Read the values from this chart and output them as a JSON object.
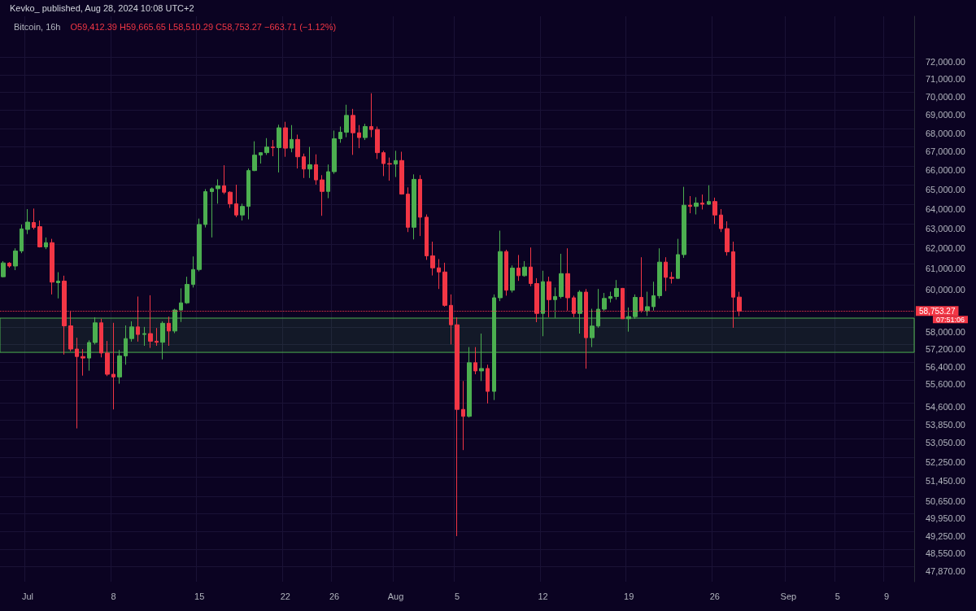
{
  "chart_data": {
    "type": "candlestick",
    "title": "Bitcoin, 16h",
    "subtitle": "O59,412.39 H59,665.65 L58,510.29 C58,753.27 −663.71 (−1.12%)",
    "annotations": [
      "Kevko_ published, Aug 28, 2024 10:08 UTC+2",
      "07:51:06"
    ],
    "categories": [
      null,
      null,
      null,
      null,
      "Jul",
      null,
      null,
      null,
      null,
      null,
      null,
      null,
      null,
      null,
      null,
      null,
      null,
      null,
      "8",
      null,
      null,
      null,
      null,
      null,
      null,
      null,
      null,
      null,
      null,
      null,
      null,
      null,
      "15",
      null,
      null,
      null,
      null,
      null,
      null,
      null,
      null,
      null,
      null,
      null,
      null,
      null,
      "22",
      null,
      null,
      null,
      null,
      null,
      null,
      null,
      "26",
      null,
      null,
      null,
      null,
      null,
      null,
      null,
      null,
      null,
      "Aug",
      null,
      null,
      null,
      null,
      null,
      null,
      null,
      null,
      null,
      "5",
      null,
      null,
      null,
      null,
      null,
      null,
      null,
      null,
      null,
      null,
      null,
      null,
      null,
      "12",
      null,
      null,
      null,
      null,
      null,
      null,
      null,
      null,
      null,
      null,
      null,
      null,
      null,
      "19",
      null,
      null,
      null,
      null,
      null,
      null,
      null,
      null,
      null,
      null,
      null,
      null,
      null,
      "26",
      null,
      null,
      null,
      null,
      null,
      null,
      null,
      null,
      null,
      null,
      null,
      "Sep",
      null,
      null,
      null,
      null,
      null,
      null,
      null,
      "5",
      null,
      null,
      null,
      null,
      null,
      null,
      null,
      "9",
      null,
      null,
      null,
      null
    ],
    "ohlc": [
      [
        60390,
        61150,
        60360,
        61060
      ],
      [
        61050,
        61100,
        60830,
        60910
      ],
      [
        60910,
        61780,
        60710,
        61650
      ],
      [
        61650,
        62970,
        61540,
        62750
      ],
      [
        62720,
        63750,
        62490,
        63090
      ],
      [
        63070,
        63780,
        62720,
        62820
      ],
      [
        62860,
        63170,
        61820,
        61850
      ],
      [
        61850,
        62320,
        61740,
        62060
      ],
      [
        62060,
        62250,
        59540,
        60130
      ],
      [
        60100,
        60610,
        59350,
        60180
      ],
      [
        60180,
        60440,
        56740,
        58060
      ],
      [
        58060,
        58770,
        56890,
        56990
      ],
      [
        56990,
        57510,
        53480,
        56650
      ],
      [
        56650,
        56990,
        55790,
        56580
      ],
      [
        56580,
        57390,
        56010,
        57290
      ],
      [
        57290,
        58460,
        57200,
        58200
      ],
      [
        58200,
        58390,
        56610,
        56810
      ],
      [
        56810,
        57360,
        55770,
        55850
      ],
      [
        55850,
        58200,
        54300,
        55730
      ],
      [
        55730,
        56950,
        55430,
        56680
      ],
      [
        56680,
        58080,
        56280,
        57470
      ],
      [
        57470,
        58270,
        57330,
        58010
      ],
      [
        58010,
        59440,
        57330,
        57660
      ],
      [
        57660,
        58010,
        57140,
        57700
      ],
      [
        57700,
        59500,
        57040,
        57350
      ],
      [
        57350,
        57960,
        57140,
        57300
      ],
      [
        57300,
        58270,
        56520,
        58180
      ],
      [
        58180,
        58490,
        57140,
        57820
      ],
      [
        57820,
        58860,
        57720,
        58800
      ],
      [
        58800,
        59830,
        58240,
        59140
      ],
      [
        59140,
        60390,
        59090,
        60020
      ],
      [
        60020,
        61380,
        59870,
        60740
      ],
      [
        60740,
        63270,
        60650,
        62970
      ],
      [
        62970,
        64780,
        62820,
        64650
      ],
      [
        64650,
        64870,
        62320,
        64800
      ],
      [
        64800,
        65290,
        64030,
        64950
      ],
      [
        64950,
        66030,
        64520,
        64620
      ],
      [
        64620,
        64670,
        63810,
        64020
      ],
      [
        64020,
        65010,
        63340,
        63450
      ],
      [
        63450,
        64030,
        63170,
        63890
      ],
      [
        63890,
        65860,
        63230,
        65750
      ],
      [
        65750,
        67310,
        65720,
        66570
      ],
      [
        66570,
        66720,
        66120,
        66700
      ],
      [
        66700,
        67480,
        66580,
        67000
      ],
      [
        67000,
        67380,
        66510,
        66970
      ],
      [
        66970,
        68210,
        65650,
        68040
      ],
      [
        68040,
        68370,
        66480,
        66940
      ],
      [
        66940,
        68190,
        66720,
        67410
      ],
      [
        67410,
        67670,
        65860,
        66480
      ],
      [
        66480,
        66650,
        65360,
        65830
      ],
      [
        65830,
        67010,
        65360,
        66060
      ],
      [
        66060,
        66610,
        65010,
        65260
      ],
      [
        65260,
        65510,
        63410,
        64660
      ],
      [
        64660,
        66070,
        64310,
        65690
      ],
      [
        65690,
        67890,
        65580,
        67450
      ],
      [
        67450,
        68110,
        67230,
        67800
      ],
      [
        67800,
        69310,
        67530,
        68720
      ],
      [
        68720,
        69080,
        66580,
        67770
      ],
      [
        67770,
        68190,
        66940,
        67510
      ],
      [
        67510,
        68260,
        67380,
        68110
      ],
      [
        68110,
        69950,
        67530,
        67950
      ],
      [
        67950,
        68110,
        66360,
        66700
      ],
      [
        66700,
        66800,
        65460,
        66120
      ],
      [
        66120,
        66440,
        65220,
        66090
      ],
      [
        66090,
        66800,
        65410,
        66280
      ],
      [
        66280,
        66750,
        64500,
        64520
      ],
      [
        64520,
        64870,
        62590,
        62830
      ],
      [
        62830,
        65550,
        62220,
        65290
      ],
      [
        65290,
        65510,
        62390,
        63340
      ],
      [
        63340,
        63480,
        61210,
        61410
      ],
      [
        61410,
        62110,
        60450,
        60820
      ],
      [
        60820,
        61250,
        59800,
        60620
      ],
      [
        60620,
        61070,
        58960,
        59020
      ],
      [
        59020,
        59540,
        57200,
        58110
      ],
      [
        58110,
        58460,
        49060,
        54300
      ],
      [
        54300,
        55550,
        52560,
        54000
      ],
      [
        54000,
        57080,
        53950,
        56370
      ],
      [
        56370,
        57080,
        55850,
        56000
      ],
      [
        56000,
        57700,
        55550,
        56110
      ],
      [
        56110,
        56280,
        54560,
        55090
      ],
      [
        55090,
        59540,
        54710,
        59380
      ],
      [
        59380,
        62660,
        59220,
        61620
      ],
      [
        61620,
        61710,
        59480,
        59740
      ],
      [
        59740,
        60940,
        59630,
        60810
      ],
      [
        60810,
        61450,
        60190,
        60440
      ],
      [
        60440,
        61150,
        60390,
        60860
      ],
      [
        60860,
        61820,
        59930,
        60060
      ],
      [
        60060,
        60320,
        58230,
        58640
      ],
      [
        58640,
        60680,
        57580,
        60150
      ],
      [
        60150,
        60390,
        58460,
        59290
      ],
      [
        59290,
        59870,
        58430,
        59440
      ],
      [
        59440,
        61510,
        59350,
        60540
      ],
      [
        60540,
        61780,
        58770,
        59380
      ],
      [
        59380,
        59480,
        58460,
        58640
      ],
      [
        58640,
        59740,
        57700,
        59650
      ],
      [
        59650,
        59800,
        56100,
        57510
      ],
      [
        57510,
        58860,
        57080,
        58050
      ],
      [
        58050,
        59800,
        57970,
        58840
      ],
      [
        58840,
        59610,
        58710,
        59350
      ],
      [
        59350,
        59670,
        59160,
        59440
      ],
      [
        59440,
        60230,
        59290,
        59830
      ],
      [
        59830,
        59850,
        58390,
        58390
      ],
      [
        58390,
        58920,
        57790,
        58490
      ],
      [
        58490,
        59540,
        58390,
        59400
      ],
      [
        59400,
        61340,
        58680,
        58770
      ],
      [
        58770,
        59670,
        58520,
        58960
      ],
      [
        58960,
        60150,
        58770,
        59480
      ],
      [
        59480,
        61780,
        59350,
        61100
      ],
      [
        61100,
        61340,
        59700,
        60360
      ],
      [
        60360,
        60620,
        60060,
        60310
      ],
      [
        60310,
        62250,
        60300,
        61470
      ],
      [
        61470,
        64900,
        61310,
        63950
      ],
      [
        63950,
        64420,
        63540,
        63890
      ],
      [
        63890,
        64360,
        63480,
        64060
      ],
      [
        64060,
        64500,
        63730,
        64000
      ],
      [
        64000,
        64980,
        63960,
        64140
      ],
      [
        64140,
        64340,
        63000,
        63450
      ],
      [
        63450,
        63750,
        62590,
        62760
      ],
      [
        62760,
        63130,
        61420,
        61610
      ],
      [
        61610,
        62110,
        57970,
        59410
      ],
      [
        59412.39,
        59665.65,
        58510.29,
        58753.27
      ],
      null,
      null,
      null,
      null,
      null,
      null,
      null,
      null,
      null,
      null,
      null,
      null,
      null,
      null,
      null,
      null,
      null,
      null,
      null,
      null,
      null,
      null,
      null,
      null,
      null,
      null,
      null,
      null
    ],
    "colors": [
      "#4caf50",
      "#f23645",
      "#4caf50",
      "#4caf50",
      "#4caf50",
      "#f23645",
      "#f23645",
      "#4caf50",
      "#f23645",
      "#4caf50",
      "#f23645",
      "#f23645",
      "#f23645",
      "#f23645",
      "#4caf50",
      "#4caf50",
      "#f23645",
      "#f23645",
      "#f23645",
      "#4caf50",
      "#4caf50",
      "#4caf50",
      "#f23645",
      "#4caf50",
      "#f23645",
      "#f23645",
      "#4caf50",
      "#f23645",
      "#4caf50",
      "#4caf50",
      "#4caf50",
      "#4caf50",
      "#4caf50",
      "#4caf50",
      "#4caf50",
      "#4caf50",
      "#f23645",
      "#f23645",
      "#f23645",
      "#4caf50",
      "#4caf50",
      "#4caf50",
      "#4caf50",
      "#4caf50",
      "#f23645",
      "#4caf50",
      "#f23645",
      "#4caf50",
      "#f23645",
      "#f23645",
      "#4caf50",
      "#f23645",
      "#f23645",
      "#4caf50",
      "#4caf50",
      "#4caf50",
      "#4caf50",
      "#f23645",
      "#f23645",
      "#4caf50",
      "#f23645",
      "#f23645",
      "#f23645",
      "#f23645",
      "#4caf50",
      "#f23645",
      "#f23645",
      "#4caf50",
      "#f23645",
      "#f23645",
      "#f23645",
      "#f23645",
      "#f23645",
      "#f23645",
      "#f23645",
      "#f23645",
      "#4caf50",
      "#f23645",
      "#4caf50",
      "#f23645",
      "#4caf50",
      "#4caf50",
      "#f23645",
      "#4caf50",
      "#f23645",
      "#4caf50",
      "#f23645",
      "#f23645",
      "#4caf50",
      "#f23645",
      "#4caf50",
      "#4caf50",
      "#f23645",
      "#f23645",
      "#4caf50",
      "#f23645",
      "#4caf50",
      "#4caf50",
      "#4caf50",
      "#4caf50",
      "#4caf50",
      "#f23645",
      "#4caf50",
      "#4caf50",
      "#f23645",
      "#4caf50",
      "#4caf50",
      "#4caf50",
      "#f23645",
      "#f23645",
      "#4caf50",
      "#4caf50",
      "#f23645",
      "#4caf50",
      "#f23645",
      "#4caf50",
      "#f23645",
      "#f23645",
      "#f23645",
      "#f23645",
      "#f23645",
      null,
      null,
      null,
      null,
      null,
      null,
      null,
      null,
      null,
      null,
      null,
      null,
      null,
      null,
      null,
      null,
      null,
      null,
      null,
      null,
      null,
      null,
      null,
      null,
      null,
      null,
      null,
      null
    ],
    "log": true,
    "ylim": [
      47300,
      74400
    ],
    "yticks": [
      {
        "value": 72000,
        "label": "72,000.00"
      },
      {
        "value": 71000,
        "label": "71,000.00"
      },
      {
        "value": 70000,
        "label": "70,000.00"
      },
      {
        "value": 69000,
        "label": "69,000.00"
      },
      {
        "value": 68000,
        "label": "68,000.00"
      },
      {
        "value": 67000,
        "label": "67,000.00"
      },
      {
        "value": 66000,
        "label": "66,000.00"
      },
      {
        "value": 65000,
        "label": "65,000.00"
      },
      {
        "value": 64000,
        "label": "64,000.00"
      },
      {
        "value": 63000,
        "label": "63,000.00"
      },
      {
        "value": 62000,
        "label": "62,000.00"
      },
      {
        "value": 61000,
        "label": "61,000.00"
      },
      {
        "value": 60000,
        "label": "60,000.00"
      },
      {
        "value": 58000,
        "label": "58,000.00"
      },
      {
        "value": 57200,
        "label": "57,200.00"
      },
      {
        "value": 56400,
        "label": "56,400.00"
      },
      {
        "value": 55600,
        "label": "55,600.00"
      },
      {
        "value": 54600,
        "label": "54,600.00"
      },
      {
        "value": 53850,
        "label": "53,850.00"
      },
      {
        "value": 53050,
        "label": "53,050.00"
      },
      {
        "value": 52250,
        "label": "52,250.00"
      },
      {
        "value": 51450,
        "label": "51,450.00"
      },
      {
        "value": 50650,
        "label": "50,650.00"
      },
      {
        "value": 49950,
        "label": "49,950.00"
      },
      {
        "value": 49250,
        "label": "49,250.00"
      },
      {
        "value": 48550,
        "label": "48,550.00"
      },
      {
        "value": 47870,
        "label": "47,870.00"
      }
    ],
    "ref_lines": [
      {
        "axis": "y",
        "value": 58753.27,
        "label": "58,753.27",
        "color": "#f23645",
        "line_style": "dotted"
      }
    ],
    "bands": [
      {
        "axis": "y",
        "from": 56840,
        "to": 58420,
        "color": "#4caf50"
      }
    ],
    "grid": true
  }
}
